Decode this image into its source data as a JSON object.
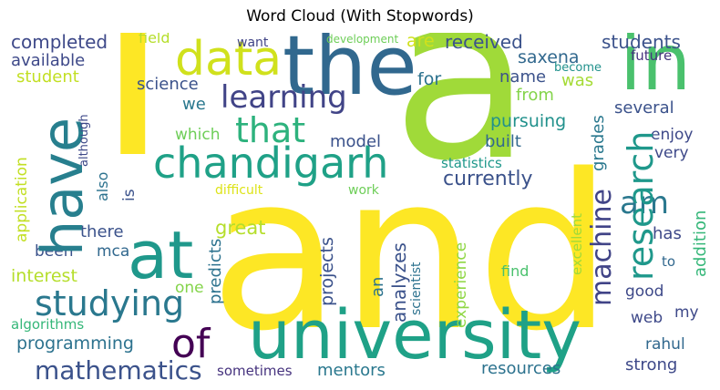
{
  "title": "Word Cloud (With Stopwords)",
  "words": {
    "i": {
      "text": "i",
      "color": "#fde725"
    },
    "a": {
      "text": "a",
      "color": "#a0da39"
    },
    "and": {
      "text": "and",
      "color": "#fde725"
    },
    "the": {
      "text": "the",
      "color": "#31688e"
    },
    "university": {
      "text": "university",
      "color": "#1fa187"
    },
    "in": {
      "text": "in",
      "color": "#4ac16d"
    },
    "have": {
      "text": "have",
      "color": "#277f8e"
    },
    "at": {
      "text": "at",
      "color": "#1f988b"
    },
    "data": {
      "text": "data",
      "color": "#d0e11c"
    },
    "chandigarh": {
      "text": "chandigarh",
      "color": "#1fa187"
    },
    "learning": {
      "text": "learning",
      "color": "#414487"
    },
    "that": {
      "text": "that",
      "color": "#2db27d"
    },
    "studying": {
      "text": "studying",
      "color": "#2a788e"
    },
    "of": {
      "text": "of",
      "color": "#440154"
    },
    "mathematics": {
      "text": "mathematics",
      "color": "#3b528b"
    },
    "research": {
      "text": "research",
      "color": "#1f988b"
    },
    "machine": {
      "text": "machine",
      "color": "#414487"
    },
    "am": {
      "text": "am",
      "color": "#2a788e"
    },
    "currently": {
      "text": "currently",
      "color": "#3b528b"
    },
    "completed": {
      "text": "completed",
      "color": "#3e4989"
    },
    "available": {
      "text": "available",
      "color": "#3e4989"
    },
    "student": {
      "text": "student",
      "color": "#c2df23"
    },
    "field": {
      "text": "field",
      "color": "#b5de2b"
    },
    "want": {
      "text": "want",
      "color": "#414487"
    },
    "development": {
      "text": "development",
      "color": "#6ece58"
    },
    "are": {
      "text": "are",
      "color": "#d0e11c"
    },
    "received": {
      "text": "received",
      "color": "#3b528b"
    },
    "saxena": {
      "text": "saxena",
      "color": "#31688e"
    },
    "students": {
      "text": "students",
      "color": "#3b528b"
    },
    "future": {
      "text": "future",
      "color": "#46337e"
    },
    "become": {
      "text": "become",
      "color": "#21918c"
    },
    "name": {
      "text": "name",
      "color": "#3b528b"
    },
    "was": {
      "text": "was",
      "color": "#a5db36"
    },
    "for": {
      "text": "for",
      "color": "#2c728e"
    },
    "science": {
      "text": "science",
      "color": "#3b528b"
    },
    "we": {
      "text": "we",
      "color": "#2a788e"
    },
    "although": {
      "text": "although",
      "color": "#3e4989"
    },
    "from": {
      "text": "from",
      "color": "#84d44b"
    },
    "pursuing": {
      "text": "pursuing",
      "color": "#21918c"
    },
    "grades": {
      "text": "grades",
      "color": "#2a788e"
    },
    "several": {
      "text": "several",
      "color": "#3b528b"
    },
    "which": {
      "text": "which",
      "color": "#6ece58"
    },
    "model": {
      "text": "model",
      "color": "#3b528b"
    },
    "built": {
      "text": "built",
      "color": "#31688e"
    },
    "enjoy": {
      "text": "enjoy",
      "color": "#3e4989"
    },
    "very": {
      "text": "very",
      "color": "#3e4989"
    },
    "also": {
      "text": "also",
      "color": "#2c728e"
    },
    "is": {
      "text": "is",
      "color": "#3b528b"
    },
    "application": {
      "text": "application",
      "color": "#c2df23"
    },
    "statistics": {
      "text": "statistics",
      "color": "#1f988b"
    },
    "difficult": {
      "text": "difficult",
      "color": "#dde318"
    },
    "work": {
      "text": "work",
      "color": "#6ece58"
    },
    "addition": {
      "text": "addition",
      "color": "#35b779"
    },
    "there": {
      "text": "there",
      "color": "#3b528b"
    },
    "mca": {
      "text": "mca",
      "color": "#31688e"
    },
    "great": {
      "text": "great",
      "color": "#b5de2b"
    },
    "predicts": {
      "text": "predicts",
      "color": "#2c728e"
    },
    "been": {
      "text": "been",
      "color": "#3b528b"
    },
    "mentors": {
      "text": "mentors",
      "color": "#2a788e"
    },
    "projects": {
      "text": "projects",
      "color": "#3b528b"
    },
    "an": {
      "text": "an",
      "color": "#2c728e"
    },
    "analyzes": {
      "text": "analyzes",
      "color": "#3b528b"
    },
    "scientist": {
      "text": "scientist",
      "color": "#2c728e"
    },
    "experience": {
      "text": "experience",
      "color": "#8fd744"
    },
    "excellent": {
      "text": "excellent",
      "color": "#a0da39"
    },
    "has": {
      "text": "has",
      "color": "#3e4989"
    },
    "to": {
      "text": "to",
      "color": "#31688e"
    },
    "find": {
      "text": "find",
      "color": "#4ac16d"
    },
    "good": {
      "text": "good",
      "color": "#3e4989"
    },
    "interest": {
      "text": "interest",
      "color": "#b5de2b"
    },
    "one": {
      "text": "one",
      "color": "#84d44b"
    },
    "algorithms": {
      "text": "algorithms",
      "color": "#35b779"
    },
    "web": {
      "text": "web",
      "color": "#3e4989"
    },
    "my": {
      "text": "my",
      "color": "#3e4989"
    },
    "programming": {
      "text": "programming",
      "color": "#2c728e"
    },
    "rahul": {
      "text": "rahul",
      "color": "#31688e"
    },
    "resources": {
      "text": "resources",
      "color": "#2c728e"
    },
    "strong": {
      "text": "strong",
      "color": "#3e4989"
    },
    "sometimes": {
      "text": "sometimes",
      "color": "#46337e"
    }
  }
}
